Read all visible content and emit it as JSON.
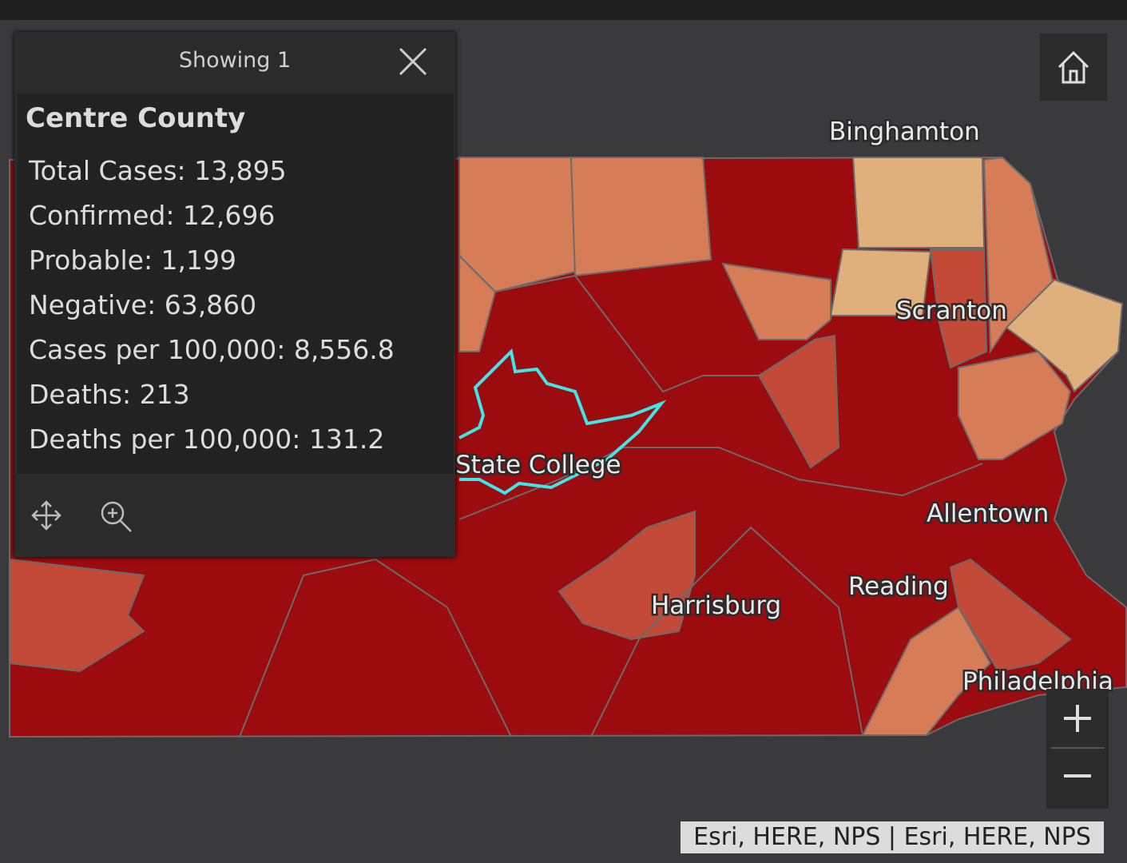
{
  "popup": {
    "header": "Showing 1",
    "title": "Centre County",
    "fields": [
      "Total Cases: 13,895",
      "Confirmed: 12,696",
      "Probable: 1,199",
      "Negative: 63,860",
      "Cases per 100,000: 8,556.8",
      "Deaths: 213",
      "Deaths per 100,000: 131.2"
    ]
  },
  "map": {
    "cities": [
      "Binghamton",
      "Scranton",
      "State College",
      "Allentown",
      "Reading",
      "Harrisburg",
      "Philadelphia"
    ],
    "attribution": "Esri, HERE, NPS | Esri, HERE, NPS"
  }
}
